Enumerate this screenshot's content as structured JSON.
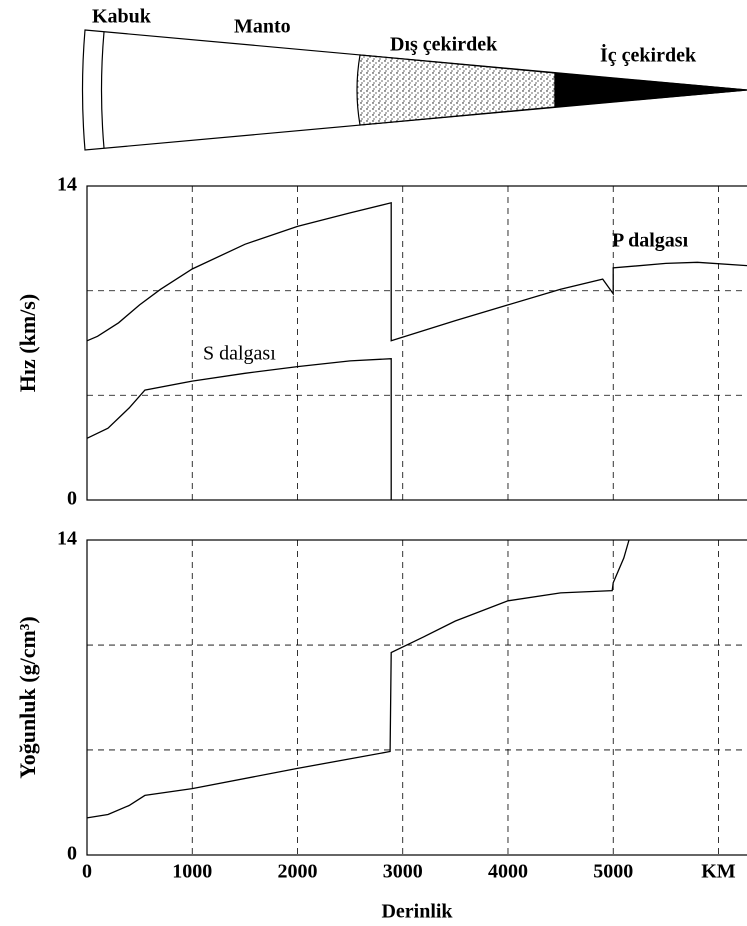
{
  "diagram": {
    "labels": [
      "Kabuk",
      "Manto",
      "Dış çekirdek",
      "İç çekirdek"
    ]
  },
  "chart_data": [
    {
      "type": "line",
      "ylabel": "Hız (km/s)",
      "xlim": [
        0,
        6271
      ],
      "ylim": [
        0,
        14
      ],
      "yticks": [
        0,
        14
      ],
      "ygrid": [
        4.67,
        9.33
      ],
      "xgrid": [
        1000,
        2000,
        3000,
        4000,
        5000,
        6000
      ],
      "color": "#000",
      "series": [
        {
          "name": "P dalgası",
          "x": [
            0,
            100,
            300,
            500,
            700,
            1000,
            1500,
            2000,
            2500,
            2890,
            2890,
            3500,
            4000,
            4500,
            4900,
            5000,
            5000,
            5500,
            5800,
            6271
          ],
          "values": [
            7.1,
            7.3,
            7.9,
            8.7,
            9.4,
            10.3,
            11.4,
            12.2,
            12.8,
            13.25,
            7.1,
            8.0,
            8.7,
            9.4,
            9.85,
            9.2,
            10.35,
            10.55,
            10.6,
            10.45
          ]
        },
        {
          "name": "S dalgası",
          "x": [
            0,
            200,
            400,
            550,
            1000,
            1500,
            2000,
            2500,
            2890,
            2890
          ],
          "values": [
            2.75,
            3.2,
            4.1,
            4.9,
            5.3,
            5.65,
            5.95,
            6.2,
            6.3,
            0
          ]
        }
      ]
    },
    {
      "type": "line",
      "ylabel": "Yoğunluk (g/cm³)",
      "xlabel": "Derinlik",
      "xlim": [
        0,
        6271
      ],
      "ylim": [
        0,
        14
      ],
      "yticks": [
        0,
        14
      ],
      "ygrid": [
        4.67,
        9.33
      ],
      "xticks": [
        0,
        1000,
        2000,
        3000,
        4000,
        5000,
        {
          "value": 6000,
          "label": "KM"
        }
      ],
      "color": "#000",
      "series": [
        {
          "x": [
            0,
            200,
            400,
            550,
            1000,
            2000,
            2880,
            2890,
            3200,
            3500,
            4000,
            4500,
            4990,
            5000,
            5100,
            5150
          ],
          "values": [
            1.65,
            1.8,
            2.2,
            2.65,
            2.95,
            3.85,
            4.6,
            9.0,
            9.7,
            10.4,
            11.3,
            11.65,
            11.75,
            12.1,
            13.2,
            14
          ]
        }
      ]
    }
  ]
}
